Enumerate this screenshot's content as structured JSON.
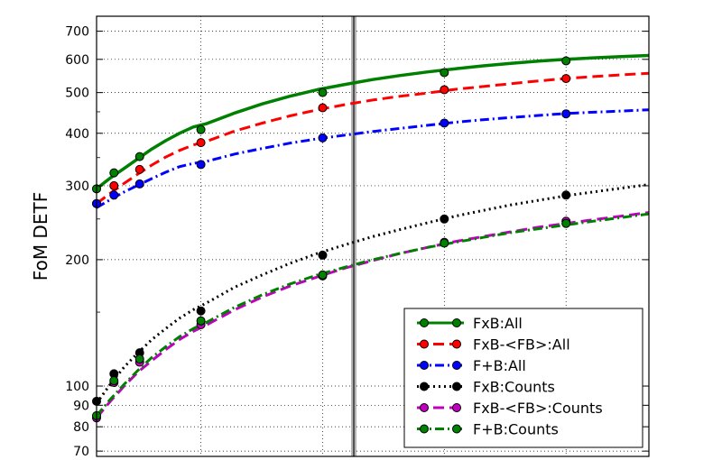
{
  "chart_data": {
    "type": "line",
    "title": "",
    "xlabel": "",
    "ylabel": "FoM DETF",
    "y_scale": "log",
    "xlim": [
      0,
      10
    ],
    "ylim": [
      68,
      760
    ],
    "x_gridlines": [
      1.889,
      4.093,
      6.296,
      8.5
    ],
    "vertical_marker_x": 4.657,
    "y_ticks": [
      70,
      80,
      90,
      100,
      200,
      300,
      400,
      500,
      600,
      700
    ],
    "y_tick_labels": [
      "70",
      "80",
      "90",
      "100",
      "200",
      "300",
      "400",
      "500",
      "600",
      "700"
    ],
    "grid": true,
    "legend_position": "lower-right",
    "series": [
      {
        "name": "FxB:All",
        "color": "#008000",
        "style": "solid",
        "marker_color": "#008000",
        "curve_x": [
          0,
          0.25,
          0.5,
          0.75,
          1,
          1.25,
          1.5,
          1.75,
          2,
          2.5,
          3,
          3.5,
          4,
          4.5,
          5,
          5.5,
          6,
          6.5,
          7,
          7.5,
          8,
          8.5,
          9,
          9.5,
          10
        ],
        "curve_y": [
          295,
          313,
          330,
          348,
          367,
          384,
          400,
          414,
          422,
          447,
          470,
          490,
          508,
          523,
          537,
          549,
          560,
          570,
          579,
          587,
          594,
          600,
          605,
          609,
          613
        ],
        "marker_x": [
          0,
          0.315,
          0.78,
          1.889,
          4.093,
          6.296,
          8.5
        ],
        "marker_y": [
          295,
          322,
          352,
          408,
          500,
          558,
          595
        ]
      },
      {
        "name": "FxB-<FB>:All",
        "color": "#ff0000",
        "style": "dashed",
        "marker_color": "#ff0000",
        "curve_x": [
          0,
          0.25,
          0.5,
          0.75,
          1,
          1.25,
          1.5,
          1.75,
          2,
          2.5,
          3,
          3.5,
          4,
          4.5,
          5,
          5.5,
          6,
          6.5,
          7,
          7.5,
          8,
          8.5,
          9,
          9.5,
          10
        ],
        "curve_y": [
          272,
          288,
          304,
          320,
          336,
          351,
          364,
          375,
          383,
          405,
          423,
          440,
          455,
          468,
          480,
          490,
          499,
          509,
          517,
          525,
          533,
          540,
          546,
          551,
          556
        ],
        "marker_x": [
          0,
          0.315,
          0.78,
          1.889,
          4.093,
          6.296,
          8.5
        ],
        "marker_y": [
          272,
          300,
          328,
          380,
          460,
          508,
          540
        ]
      },
      {
        "name": "F+B:All",
        "color": "#0000ff",
        "style": "dashdot",
        "marker_color": "#0000ff",
        "curve_x": [
          0,
          0.25,
          0.5,
          0.75,
          1,
          1.25,
          1.5,
          1.75,
          2,
          2.5,
          3,
          3.5,
          4,
          4.5,
          5,
          5.5,
          6,
          6.5,
          7,
          7.5,
          8,
          8.5,
          9,
          9.5,
          10
        ],
        "curve_y": [
          266,
          278,
          290,
          301,
          312,
          323,
          333,
          339,
          343,
          357,
          368,
          379,
          388,
          396,
          404,
          411,
          418,
          425,
          431,
          436,
          441,
          446,
          449,
          452,
          455
        ],
        "marker_x": [
          0,
          0.315,
          0.78,
          1.889,
          4.093,
          6.296,
          8.5
        ],
        "marker_y": [
          272,
          285,
          303,
          337,
          390,
          423,
          445
        ]
      },
      {
        "name": "FxB:Counts",
        "color": "#000000",
        "style": "dotted",
        "marker_color": "#000000",
        "curve_x": [
          0,
          0.25,
          0.5,
          0.75,
          1,
          1.25,
          1.5,
          1.75,
          2,
          2.5,
          3,
          3.5,
          4,
          4.5,
          5,
          5.5,
          6,
          6.5,
          7,
          7.5,
          8,
          8.5,
          9,
          9.5,
          10
        ],
        "curve_y": [
          91,
          101,
          111,
          120,
          129,
          137,
          145,
          152,
          158,
          172,
          184,
          196,
          207,
          217,
          227,
          236,
          245,
          254,
          262,
          270,
          277,
          284,
          290,
          296,
          302
        ],
        "marker_x": [
          0,
          0.315,
          0.78,
          1.889,
          4.093,
          6.296,
          8.5
        ],
        "marker_y": [
          92,
          107,
          120,
          151,
          205,
          250,
          285
        ]
      },
      {
        "name": "FxB-<FB>:Counts",
        "color": "#bf00bf",
        "style": "dashed",
        "marker_color": "#bf00bf",
        "curve_x": [
          0,
          0.25,
          0.5,
          0.75,
          1,
          1.25,
          1.5,
          1.75,
          2,
          2.5,
          3,
          3.5,
          4,
          4.5,
          5,
          5.5,
          6,
          6.5,
          7,
          7.5,
          8,
          8.5,
          9,
          9.5,
          10
        ],
        "curve_y": [
          84,
          92,
          100,
          108,
          115,
          122,
          129,
          135,
          140,
          152,
          163,
          173,
          182,
          191,
          199,
          207,
          214,
          221,
          227,
          233,
          239,
          244,
          249,
          254,
          259
        ],
        "marker_x": [
          0,
          0.315,
          0.78,
          1.889,
          4.093,
          6.296,
          8.5
        ],
        "marker_y": [
          84,
          102,
          114,
          140,
          183,
          220,
          247
        ]
      },
      {
        "name": "F+B:Counts",
        "color": "#008000",
        "style": "dashdot",
        "marker_color": "#008000",
        "curve_x": [
          0,
          0.25,
          0.5,
          0.75,
          1,
          1.25,
          1.5,
          1.75,
          2,
          2.5,
          3,
          3.5,
          4,
          4.5,
          5,
          5.5,
          6,
          6.5,
          7,
          7.5,
          8,
          8.5,
          9,
          9.5,
          10
        ],
        "curve_y": [
          85,
          93,
          101,
          109,
          117,
          124,
          131,
          137,
          142,
          154,
          165,
          175,
          184,
          192,
          200,
          207,
          214,
          220,
          226,
          232,
          237,
          242,
          247,
          252,
          257
        ],
        "marker_x": [
          0,
          0.315,
          0.78,
          1.889,
          4.093,
          6.296,
          8.5
        ],
        "marker_y": [
          85,
          103,
          116,
          143,
          184,
          219,
          244
        ]
      }
    ]
  }
}
